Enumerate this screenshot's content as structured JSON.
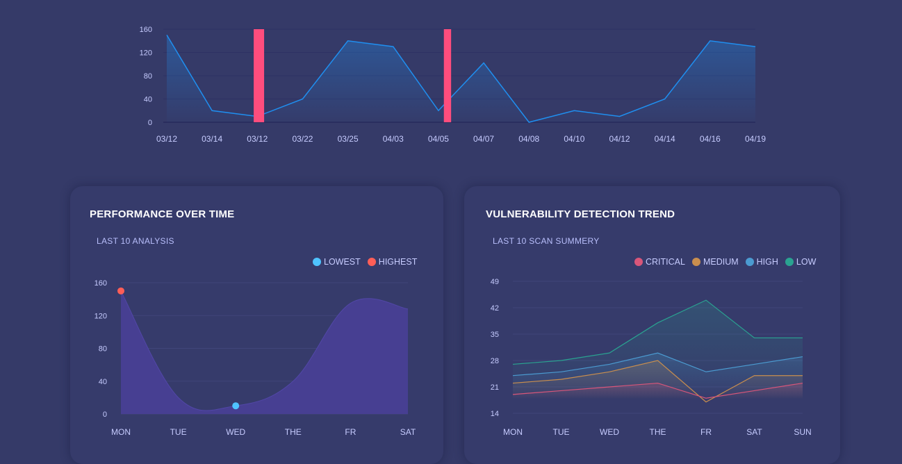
{
  "chart_data": [
    {
      "type": "line",
      "x": [
        "03/12",
        "03/14",
        "03/12",
        "03/22",
        "03/25",
        "04/03",
        "04/05",
        "04/07",
        "04/08",
        "04/10",
        "04/12",
        "04/14",
        "04/16",
        "04/19"
      ],
      "y": [
        150,
        20,
        10,
        40,
        140,
        130,
        20,
        102,
        0,
        20,
        10,
        40,
        140,
        130
      ],
      "highlight_bars": [
        {
          "from_index": 1.92,
          "to_index": 2.15,
          "color": "#ff4d7d"
        },
        {
          "from_index": 6.12,
          "to_index": 6.28,
          "color": "#ff4d7d"
        }
      ],
      "yticks": [
        0,
        40,
        80,
        120,
        160
      ],
      "ylim": [
        0,
        160
      ],
      "line_color": "#1f8ff0",
      "grid": true
    },
    {
      "type": "area",
      "title": "PERFORMANCE OVER TIME",
      "subtitle": "LAST 10 ANALYSIS",
      "categories": [
        "MON",
        "TUE",
        "WED",
        "THE",
        "FR",
        "SAT"
      ],
      "values": [
        150,
        20,
        10,
        40,
        135,
        128
      ],
      "yticks": [
        0,
        40,
        80,
        120,
        160
      ],
      "ylim": [
        0,
        160
      ],
      "fill_color": "#473f92",
      "legend": [
        {
          "name": "LOWEST",
          "color": "#4fc3ff"
        },
        {
          "name": "HIGHEST",
          "color": "#ff5e57"
        }
      ],
      "markers": [
        {
          "label": "HIGHEST",
          "index": 0,
          "value": 150,
          "color": "#ff5e57"
        },
        {
          "label": "LOWEST",
          "index": 2,
          "value": 10,
          "color": "#4fc3ff"
        }
      ]
    },
    {
      "type": "line",
      "title": "VULNERABILITY DETECTION TREND",
      "subtitle": "LAST 10 SCAN SUMMERY",
      "categories": [
        "MON",
        "TUE",
        "WED",
        "THE",
        "FR",
        "SAT",
        "SUN"
      ],
      "yticks": [
        14,
        21,
        28,
        35,
        42,
        49
      ],
      "ylim": [
        14,
        49
      ],
      "legend_position": "top-right",
      "series": [
        {
          "name": "CRITICAL",
          "color": "#d9567a",
          "values": [
            19,
            20,
            21,
            22,
            18,
            20,
            22
          ]
        },
        {
          "name": "MEDIUM",
          "color": "#c98e4e",
          "values": [
            22,
            23,
            25,
            28,
            17,
            24,
            24
          ]
        },
        {
          "name": "HIGH",
          "color": "#4b9bd1",
          "values": [
            24,
            25,
            27,
            30,
            25,
            27,
            29
          ]
        },
        {
          "name": "LOW",
          "color": "#2aa391",
          "values": [
            27,
            28,
            30,
            38,
            44,
            34,
            34
          ]
        }
      ]
    }
  ]
}
